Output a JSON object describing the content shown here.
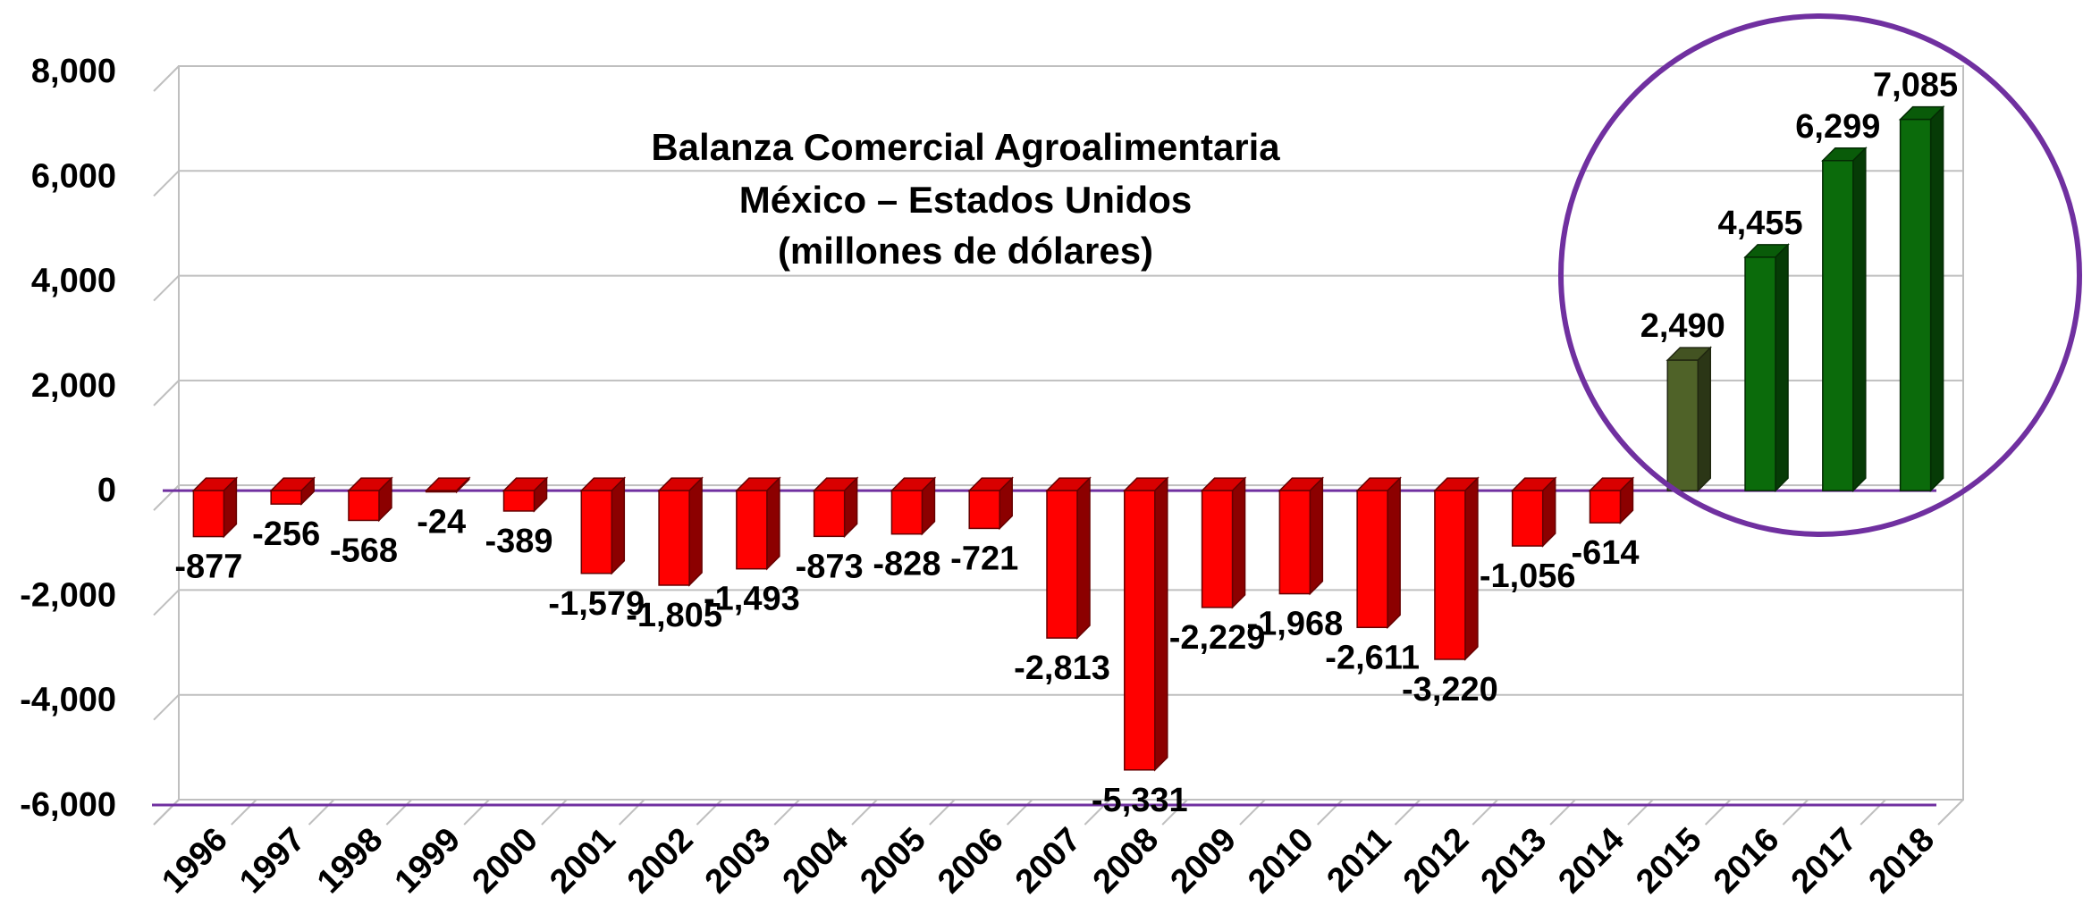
{
  "chart_data": {
    "type": "bar3d",
    "title": [
      "Balanza Comercial Agroalimentaria",
      "México – Estados Unidos",
      "(millones de dólares)"
    ],
    "categories": [
      "1996",
      "1997",
      "1998",
      "1999",
      "2000",
      "2001",
      "2002",
      "2003",
      "2004",
      "2005",
      "2006",
      "2007",
      "2008",
      "2009",
      "2010",
      "2011",
      "2012",
      "2013",
      "2014",
      "2015",
      "2016",
      "2017",
      "2018"
    ],
    "values": [
      -877,
      -256,
      -568,
      -24,
      -389,
      -1579,
      -1805,
      -1493,
      -873,
      -828,
      -721,
      -2813,
      -5331,
      -2229,
      -1968,
      -2611,
      -3220,
      -1056,
      -614,
      2490,
      4455,
      6299,
      7085
    ],
    "value_labels": [
      "-877",
      "-256",
      "-568",
      "-24",
      "-389",
      "-1,579",
      "-1,805",
      "-1,493",
      "-873",
      "-828",
      "-721",
      "-2,813",
      "-5,331",
      "-2,229",
      "-1,968",
      "-2,611",
      "-3,220",
      "-1,056",
      "-614",
      "2,490",
      "4,455",
      "6,299",
      "7,085"
    ],
    "colors": [
      "#ff0000",
      "#ff0000",
      "#ff0000",
      "#ff0000",
      "#ff0000",
      "#ff0000",
      "#ff0000",
      "#ff0000",
      "#ff0000",
      "#ff0000",
      "#ff0000",
      "#ff0000",
      "#ff0000",
      "#ff0000",
      "#ff0000",
      "#ff0000",
      "#ff0000",
      "#ff0000",
      "#ff0000",
      "#4f6228",
      "#0b6b0b",
      "#0b6b0b",
      "#0b6b0b"
    ],
    "ylim": [
      -6000,
      8000
    ],
    "yticks": [
      {
        "value": -6000,
        "label": "-6,000"
      },
      {
        "value": -4000,
        "label": "-4,000"
      },
      {
        "value": -2000,
        "label": "-2,000"
      },
      0,
      {
        "value": 2000,
        "label": "2,000"
      },
      {
        "value": 4000,
        "label": "4,000"
      },
      {
        "value": 6000,
        "label": "6,000"
      },
      {
        "value": 8000,
        "label": "8,000"
      }
    ],
    "grid": true
  }
}
